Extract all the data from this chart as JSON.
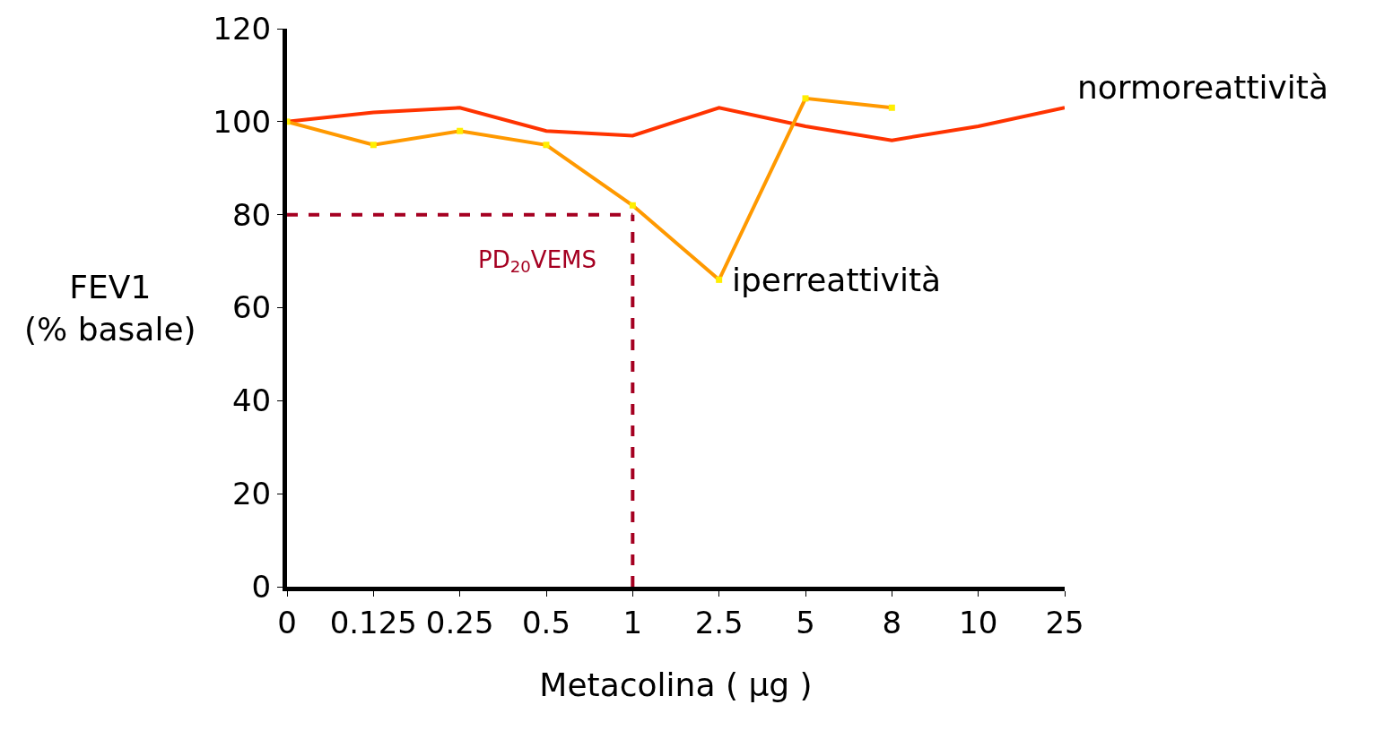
{
  "chart_data": {
    "type": "line",
    "xlabel": "Metacolina ( μg )",
    "ylabel": "FEV1\n(% basale)",
    "categories": [
      "0",
      "0.125",
      "0.25",
      "0.5",
      "1",
      "2.5",
      "5",
      "8",
      "10",
      "25"
    ],
    "series": [
      {
        "name": "normoreattività",
        "color": "#ff3300",
        "values": [
          100,
          102,
          103,
          98,
          97,
          103,
          99,
          96,
          99,
          103
        ]
      },
      {
        "name": "iperreattività",
        "color": "#ff9900",
        "marker": "square",
        "values": [
          100,
          95,
          98,
          95,
          82,
          66,
          105,
          103,
          null,
          null
        ]
      }
    ],
    "ylim": [
      0,
      120
    ],
    "yticks": [
      0,
      20,
      40,
      60,
      80,
      100,
      120
    ],
    "legend": false,
    "ref_lines": [
      {
        "axis": "y",
        "value": 80,
        "label": "PD$_{20}$VEMS",
        "color": "#a50021",
        "line_style": "dashed"
      },
      {
        "axis": "x",
        "value": "1",
        "color": "#a50021",
        "line_style": "dashed"
      }
    ]
  }
}
